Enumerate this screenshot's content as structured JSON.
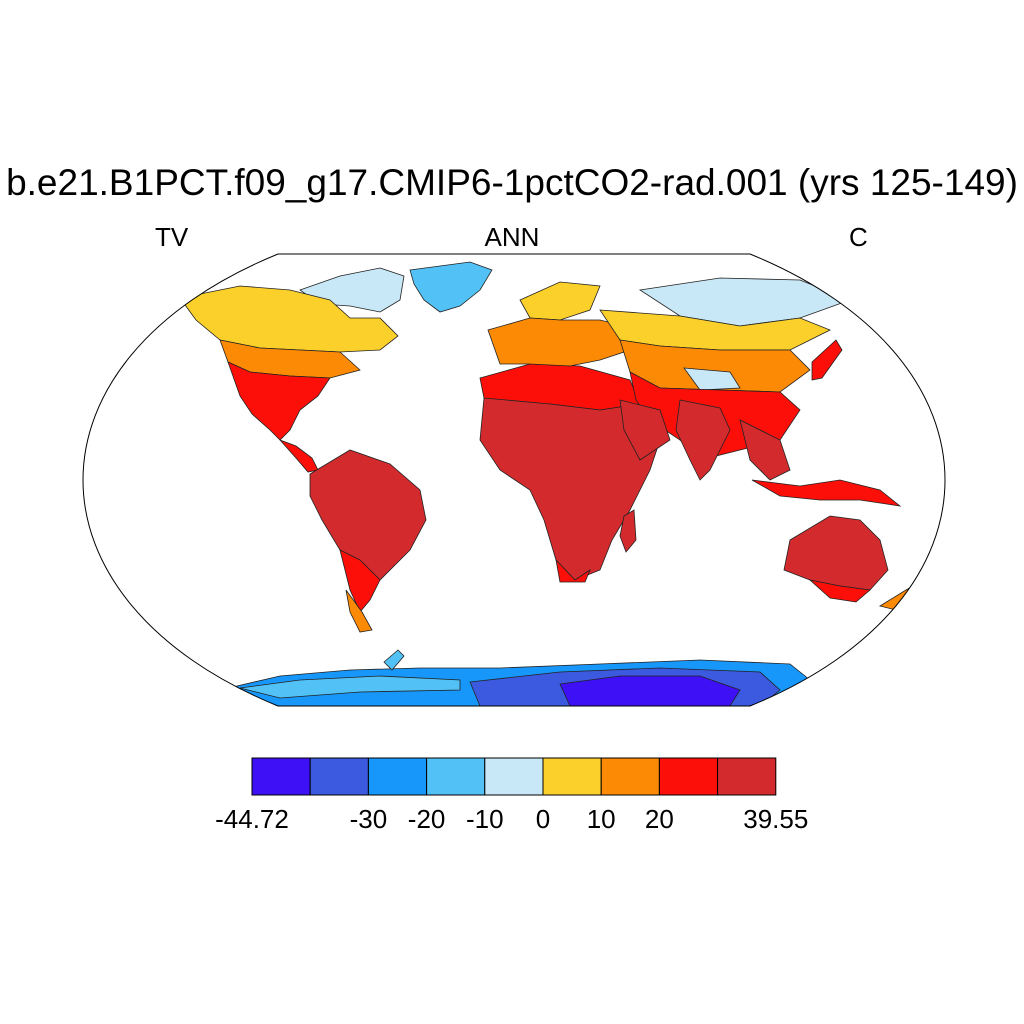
{
  "title": "b.e21.B1PCT.f09_g17.CMIP6-1pctCO2-rad.001 (yrs 125-149)",
  "left_label": "TV",
  "center_label": "ANN",
  "right_label": "C",
  "colorbar": {
    "colors": [
      "#3e10f5",
      "#3c5ae0",
      "#1897fb",
      "#52c2f6",
      "#c8e7f7",
      "#fcd02a",
      "#fd8a04",
      "#fc0f09",
      "#d32b2d"
    ],
    "labels": [
      {
        "text": "-44.72",
        "edge": 0
      },
      {
        "text": "-30",
        "edge": 2
      },
      {
        "text": "-20",
        "edge": 3
      },
      {
        "text": "-10",
        "edge": 4
      },
      {
        "text": "0",
        "edge": 5
      },
      {
        "text": "10",
        "edge": 6
      },
      {
        "text": "20",
        "edge": 7
      },
      {
        "text": "39.55",
        "edge": 9
      }
    ]
  },
  "map_colors": {
    "warm": "#d32b2d",
    "hot": "#fc0f09",
    "orange": "#fd8a04",
    "yellow": "#fcd02a",
    "pale": "#c8e7f7",
    "light_blue": "#52c2f6",
    "blue": "#1897fb",
    "deep_blue": "#3c5ae0",
    "violet": "#3e10f5"
  }
}
